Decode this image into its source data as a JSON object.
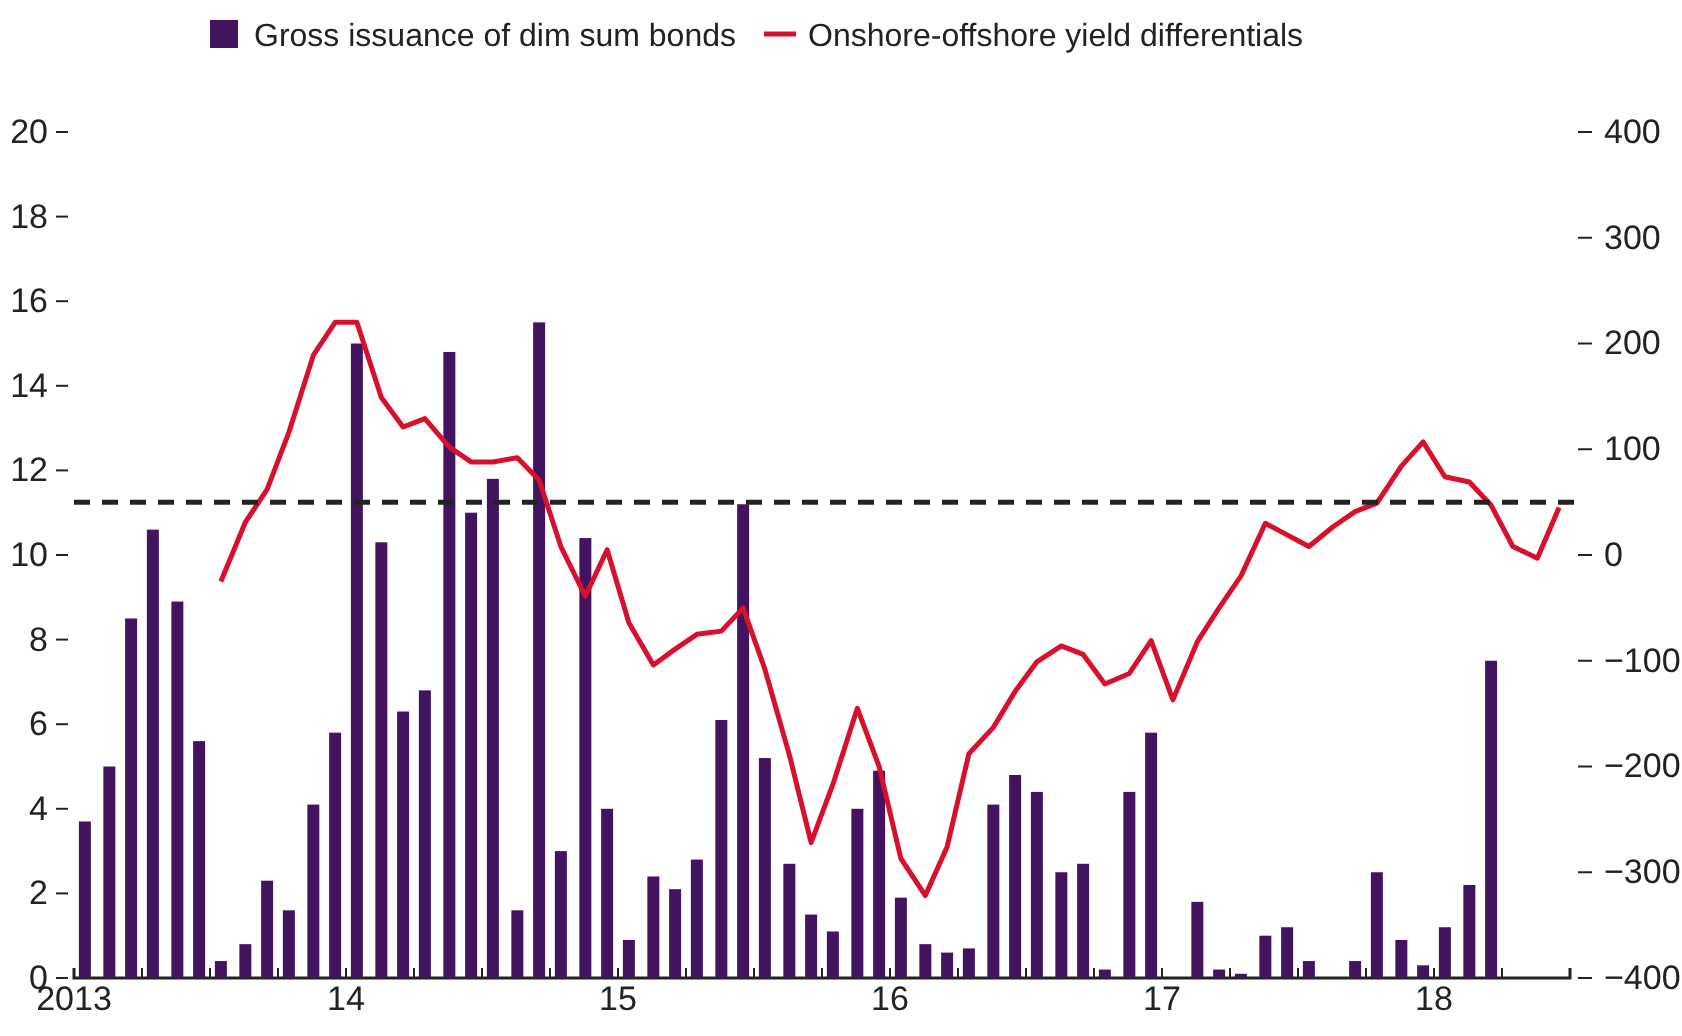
{
  "chart_data": {
    "type": "bar",
    "legend": "top",
    "grid": false,
    "xlim": [
      2013,
      2018.5
    ],
    "xticks": [
      {
        "value": 2013,
        "label": "2013"
      },
      {
        "value": 2013.25,
        "label": null
      },
      {
        "value": 2013.5,
        "label": null
      },
      {
        "value": 2013.75,
        "label": null
      },
      {
        "value": 2014,
        "label": "14"
      },
      {
        "value": 2014.25,
        "label": null
      },
      {
        "value": 2014.5,
        "label": null
      },
      {
        "value": 2014.75,
        "label": null
      },
      {
        "value": 2015,
        "label": "15"
      },
      {
        "value": 2015.25,
        "label": null
      },
      {
        "value": 2015.5,
        "label": null
      },
      {
        "value": 2015.75,
        "label": null
      },
      {
        "value": 2016,
        "label": "16"
      },
      {
        "value": 2016.25,
        "label": null
      },
      {
        "value": 2016.5,
        "label": null
      },
      {
        "value": 2016.75,
        "label": null
      },
      {
        "value": 2017,
        "label": "17"
      },
      {
        "value": 2017.25,
        "label": null
      },
      {
        "value": 2017.5,
        "label": null
      },
      {
        "value": 2017.75,
        "label": null
      },
      {
        "value": 2018,
        "label": "18"
      },
      {
        "value": 2018.25,
        "label": null
      }
    ],
    "ylim": [
      0,
      20
    ],
    "yticks": [
      0,
      2,
      4,
      6,
      8,
      10,
      12,
      14,
      16,
      18,
      20
    ],
    "y2lim": [
      -400,
      400
    ],
    "y2ticks": [
      {
        "value": -400,
        "label": "−400"
      },
      {
        "value": -300,
        "label": "−300"
      },
      {
        "value": -200,
        "label": "−200"
      },
      {
        "value": -100,
        "label": "−100"
      },
      0,
      100,
      200,
      300,
      400
    ],
    "ref_lines": [
      {
        "axis": "y2",
        "value": 50,
        "color": "#222222",
        "line_style": "dashed"
      }
    ],
    "series": [
      {
        "name": "Gross issuance of dim sum bonds",
        "color": "#44135f",
        "x": [
          2013.04,
          2013.13,
          2013.21,
          2013.29,
          2013.38,
          2013.46,
          2013.54,
          2013.63,
          2013.71,
          2013.79,
          2013.88,
          2013.96,
          2014.04,
          2014.13,
          2014.21,
          2014.29,
          2014.38,
          2014.46,
          2014.54,
          2014.63,
          2014.71,
          2014.79,
          2014.88,
          2014.96,
          2015.04,
          2015.13,
          2015.21,
          2015.29,
          2015.38,
          2015.46,
          2015.54,
          2015.63,
          2015.71,
          2015.79,
          2015.88,
          2015.96,
          2016.04,
          2016.13,
          2016.21,
          2016.29,
          2016.38,
          2016.46,
          2016.54,
          2016.63,
          2016.71,
          2016.79,
          2016.88,
          2016.96,
          2017.04,
          2017.13,
          2017.21,
          2017.29,
          2017.38,
          2017.46,
          2017.54,
          2017.63,
          2017.71,
          2017.79,
          2017.88,
          2017.96,
          2018.04,
          2018.13,
          2018.21
        ],
        "values": [
          3.7,
          5.0,
          8.5,
          10.6,
          8.9,
          5.6,
          0.4,
          0.8,
          2.3,
          1.6,
          4.1,
          5.8,
          15.0,
          10.3,
          6.3,
          6.8,
          14.8,
          11.0,
          11.8,
          1.6,
          15.5,
          3.0,
          10.4,
          4.0,
          0.9,
          2.4,
          2.1,
          2.8,
          6.1,
          11.2,
          5.2,
          2.7,
          1.5,
          1.1,
          4.0,
          4.9,
          1.9,
          0.8,
          0.6,
          0.7,
          4.1,
          4.8,
          4.4,
          2.5,
          2.7,
          0.2,
          4.4,
          5.8,
          0,
          1.8,
          0.2,
          0.1,
          1.0,
          1.2,
          0.4,
          0,
          0.4,
          2.5,
          0.9,
          0.3,
          1.2,
          2.2,
          7.5
        ]
      },
      {
        "name": "Onshore-offshore yield differentials",
        "type": "line",
        "axis": "y2",
        "color": "#d7102b",
        "marker": "none",
        "line_style": "solid",
        "x": [
          2013.54,
          2013.63,
          2013.71,
          2013.79,
          2013.88,
          2013.96,
          2014.04,
          2014.13,
          2014.21,
          2014.29,
          2014.38,
          2014.46,
          2014.54,
          2014.63,
          2014.71,
          2014.79,
          2014.88,
          2014.96,
          2015.04,
          2015.13,
          2015.21,
          2015.29,
          2015.38,
          2015.46,
          2015.54,
          2015.63,
          2015.71,
          2015.79,
          2015.88,
          2015.96,
          2016.04,
          2016.13,
          2016.21,
          2016.29,
          2016.38,
          2016.46,
          2016.54,
          2016.63,
          2016.71,
          2016.79,
          2016.88,
          2016.96,
          2017.04,
          2017.13,
          2017.21,
          2017.29,
          2017.38,
          2017.46,
          2017.54,
          2017.63,
          2017.71,
          2017.79,
          2017.88,
          2017.96,
          2018.04,
          2018.13,
          2018.21,
          2018.29,
          2018.38,
          2018.46
        ],
        "values": [
          -25,
          31,
          62,
          116,
          189,
          220,
          220,
          149,
          121,
          129,
          102,
          88,
          88,
          92,
          71,
          8,
          -39,
          5,
          -64,
          -104,
          -89,
          -75,
          -72,
          -50,
          -108,
          -189,
          -272,
          -217,
          -145,
          -200,
          -287,
          -322,
          -276,
          -188,
          -163,
          -129,
          -101,
          -86,
          -94,
          -122,
          -112,
          -81,
          -137,
          -82,
          -50,
          -20,
          30,
          19,
          8,
          27,
          41,
          49,
          84,
          107,
          74,
          69,
          47,
          8,
          -3,
          45
        ]
      }
    ]
  }
}
